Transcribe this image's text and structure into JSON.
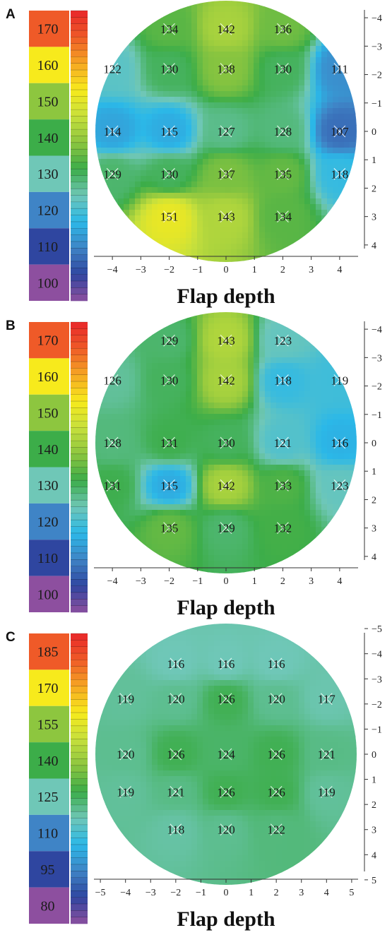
{
  "chart_data": [
    {
      "panel": "A",
      "type": "heatmap",
      "xlabel": "Flap depth",
      "xticks": [
        "−4",
        "−3",
        "−2",
        "−1",
        "0",
        "1",
        "2",
        "3",
        "4"
      ],
      "yticks": [
        "−4",
        "−3",
        "−2",
        "−1",
        "0",
        "1",
        "2",
        "3",
        "4"
      ],
      "xlim": [
        -4.6,
        4.6
      ],
      "ylim": [
        -4.6,
        4.6
      ],
      "colorbar_labels": [
        "170",
        "160",
        "150",
        "140",
        "130",
        "120",
        "110",
        "100"
      ],
      "points": [
        {
          "x": -2,
          "y": -3.6,
          "v": 134
        },
        {
          "x": 0,
          "y": -3.6,
          "v": 142
        },
        {
          "x": 2,
          "y": -3.6,
          "v": 136
        },
        {
          "x": -4,
          "y": -2.2,
          "v": 122
        },
        {
          "x": -2,
          "y": -2.2,
          "v": 130
        },
        {
          "x": 0,
          "y": -2.2,
          "v": 138
        },
        {
          "x": 2,
          "y": -2.2,
          "v": 130
        },
        {
          "x": 4,
          "y": -2.2,
          "v": 111
        },
        {
          "x": -4,
          "y": 0,
          "v": 114
        },
        {
          "x": -2,
          "y": 0,
          "v": 115
        },
        {
          "x": 0,
          "y": 0,
          "v": 127
        },
        {
          "x": 2,
          "y": 0,
          "v": 128
        },
        {
          "x": 4,
          "y": 0,
          "v": 107
        },
        {
          "x": -4,
          "y": 1.5,
          "v": 129
        },
        {
          "x": -2,
          "y": 1.5,
          "v": 130
        },
        {
          "x": 0,
          "y": 1.5,
          "v": 137
        },
        {
          "x": 2,
          "y": 1.5,
          "v": 135
        },
        {
          "x": 4,
          "y": 1.5,
          "v": 118
        },
        {
          "x": -2,
          "y": 3.0,
          "v": 151
        },
        {
          "x": 0,
          "y": 3.0,
          "v": 143
        },
        {
          "x": 2,
          "y": 3.0,
          "v": 134
        }
      ]
    },
    {
      "panel": "B",
      "type": "heatmap",
      "xlabel": "Flap depth",
      "xticks": [
        "−4",
        "−3",
        "−2",
        "−1",
        "0",
        "1",
        "2",
        "3",
        "4"
      ],
      "yticks": [
        "−4",
        "−3",
        "−2",
        "−1",
        "0",
        "1",
        "2",
        "3",
        "4"
      ],
      "xlim": [
        -4.6,
        4.6
      ],
      "ylim": [
        -4.6,
        4.6
      ],
      "colorbar_labels": [
        "170",
        "160",
        "150",
        "140",
        "130",
        "120",
        "110",
        "100"
      ],
      "points": [
        {
          "x": -2,
          "y": -3.6,
          "v": 129
        },
        {
          "x": 0,
          "y": -3.6,
          "v": 143
        },
        {
          "x": 2,
          "y": -3.6,
          "v": 123
        },
        {
          "x": -4,
          "y": -2.2,
          "v": 126
        },
        {
          "x": -2,
          "y": -2.2,
          "v": 130
        },
        {
          "x": 0,
          "y": -2.2,
          "v": 142
        },
        {
          "x": 2,
          "y": -2.2,
          "v": 118
        },
        {
          "x": 4,
          "y": -2.2,
          "v": 119
        },
        {
          "x": -4,
          "y": 0,
          "v": 128
        },
        {
          "x": -2,
          "y": 0,
          "v": 131
        },
        {
          "x": 0,
          "y": 0,
          "v": 130
        },
        {
          "x": 2,
          "y": 0,
          "v": 121
        },
        {
          "x": 4,
          "y": 0,
          "v": 116
        },
        {
          "x": -4,
          "y": 1.5,
          "v": 131
        },
        {
          "x": -2,
          "y": 1.5,
          "v": 115
        },
        {
          "x": 0,
          "y": 1.5,
          "v": 142
        },
        {
          "x": 2,
          "y": 1.5,
          "v": 133
        },
        {
          "x": 4,
          "y": 1.5,
          "v": 123
        },
        {
          "x": -2,
          "y": 3.0,
          "v": 135
        },
        {
          "x": 0,
          "y": 3.0,
          "v": 129
        },
        {
          "x": 2,
          "y": 3.0,
          "v": 132
        }
      ]
    },
    {
      "panel": "C",
      "type": "heatmap",
      "xlabel": "Flap depth",
      "xticks": [
        "−5",
        "−4",
        "−3",
        "−2",
        "−1",
        "0",
        "1",
        "2",
        "3",
        "4",
        "5"
      ],
      "yticks": [
        "−5",
        "−4",
        "−3",
        "−2",
        "−1",
        "0",
        "1",
        "2",
        "3",
        "4",
        "5"
      ],
      "xlim": [
        -5.2,
        5.2
      ],
      "ylim": [
        -5.2,
        5.2
      ],
      "colorbar_labels": [
        "185",
        "170",
        "155",
        "140",
        "125",
        "110",
        "95",
        "80"
      ],
      "points": [
        {
          "x": -2,
          "y": -3.6,
          "v": 116
        },
        {
          "x": 0,
          "y": -3.6,
          "v": 116
        },
        {
          "x": 2,
          "y": -3.6,
          "v": 116
        },
        {
          "x": -4,
          "y": -2.2,
          "v": 119
        },
        {
          "x": -2,
          "y": -2.2,
          "v": 120
        },
        {
          "x": 0,
          "y": -2.2,
          "v": 126
        },
        {
          "x": 2,
          "y": -2.2,
          "v": 120
        },
        {
          "x": 4,
          "y": -2.2,
          "v": 117
        },
        {
          "x": -4,
          "y": 0,
          "v": 120
        },
        {
          "x": -2,
          "y": 0,
          "v": 126
        },
        {
          "x": 0,
          "y": 0,
          "v": 124
        },
        {
          "x": 2,
          "y": 0,
          "v": 126
        },
        {
          "x": 4,
          "y": 0,
          "v": 121
        },
        {
          "x": -4,
          "y": 1.5,
          "v": 119
        },
        {
          "x": -2,
          "y": 1.5,
          "v": 121
        },
        {
          "x": 0,
          "y": 1.5,
          "v": 126
        },
        {
          "x": 2,
          "y": 1.5,
          "v": 126
        },
        {
          "x": 4,
          "y": 1.5,
          "v": 119
        },
        {
          "x": -2,
          "y": 3.0,
          "v": 118
        },
        {
          "x": 0,
          "y": 3.0,
          "v": 120
        },
        {
          "x": 2,
          "y": 3.0,
          "v": 122
        }
      ]
    }
  ],
  "colorbar_colors": [
    "#ef5a28",
    "#f7ea1c",
    "#8dc63f",
    "#3cad49",
    "#6fc7b7",
    "#3f84c6",
    "#2f46a0",
    "#8d4f9f"
  ],
  "colorscale_stops": [
    "#8d4f9f",
    "#2f46a0",
    "#3f84c6",
    "#2bb8e8",
    "#6fc7b7",
    "#3cad49",
    "#8dc63f",
    "#c7e03c",
    "#f7ea1c",
    "#f6a623",
    "#ef5a28",
    "#e8262a"
  ]
}
